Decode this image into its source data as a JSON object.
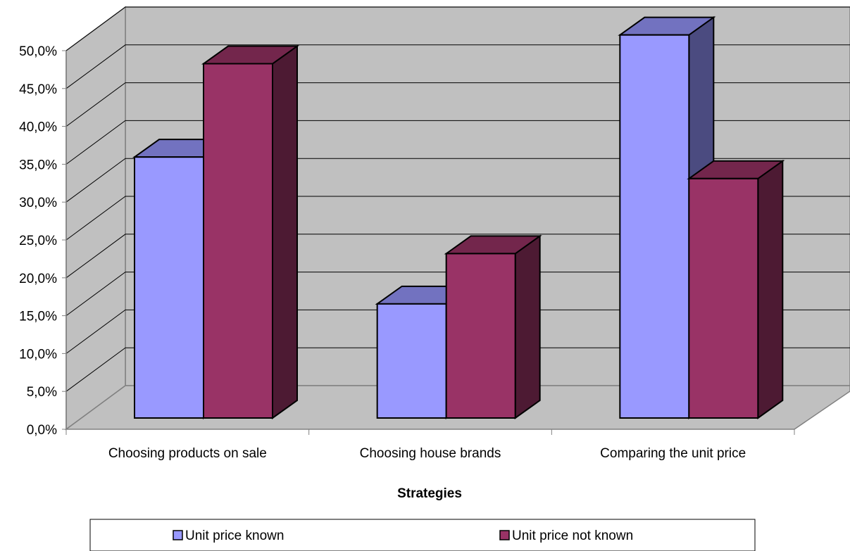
{
  "chart_data": {
    "type": "bar",
    "three_d": true,
    "categories": [
      "Choosing products on sale",
      "Choosing house brands",
      "Comparing the unit price"
    ],
    "series": [
      {
        "name": "Unit price known",
        "values": [
          32.7,
          14.3,
          48.0
        ],
        "color": "#9999ff",
        "top_color": "#7272c0",
        "side_color": "#4b4b80"
      },
      {
        "name": "Unit price not known",
        "values": [
          44.4,
          20.6,
          30.0
        ],
        "color": "#993366",
        "top_color": "#73264c",
        "side_color": "#4d1a33"
      }
    ],
    "xlabel": "Strategies",
    "ylabel": "",
    "ylim": [
      0,
      50
    ],
    "yticks": [
      "0,0%",
      "5,0%",
      "10,0%",
      "15,0%",
      "20,0%",
      "25,0%",
      "30,0%",
      "35,0%",
      "40,0%",
      "45,0%",
      "50,0%"
    ],
    "grid": true,
    "wall_color": "#c0c0c0",
    "legend_position": "bottom"
  }
}
